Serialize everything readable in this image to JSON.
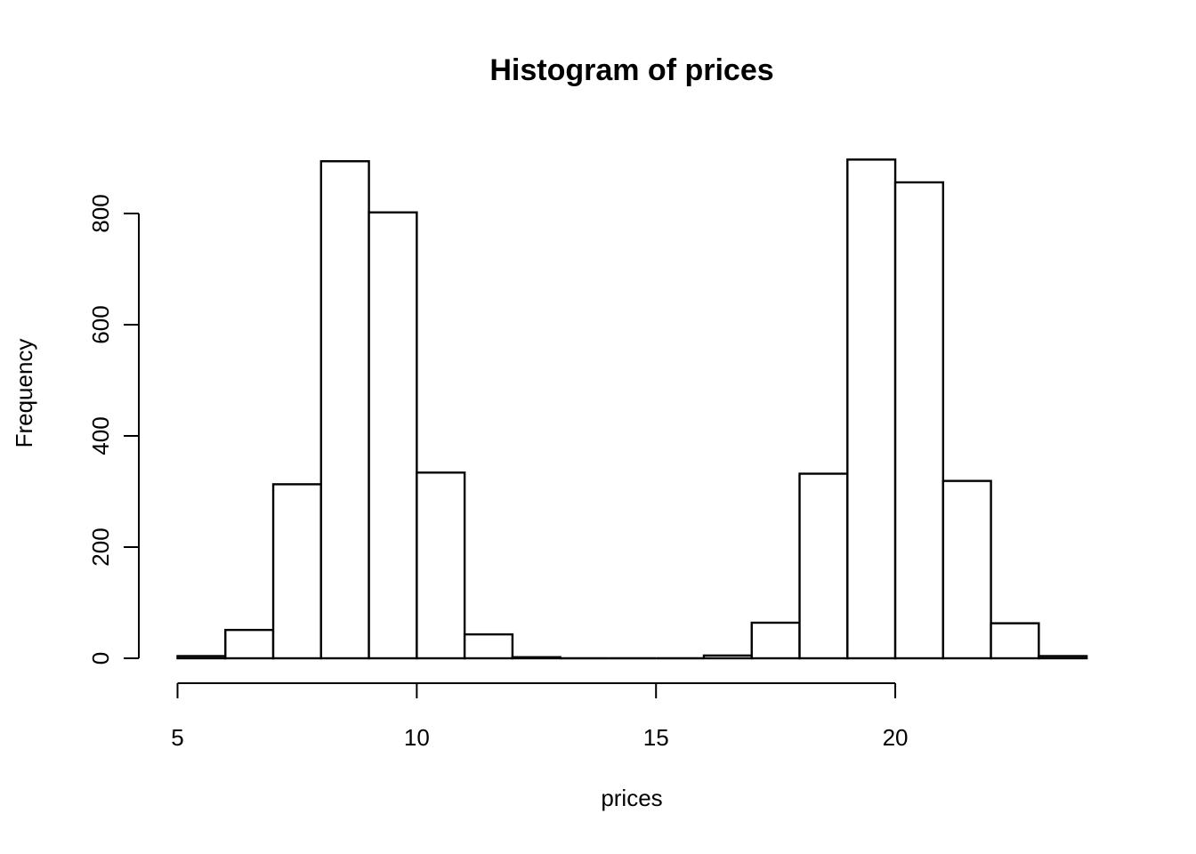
{
  "page": {
    "background": "#ffffff"
  },
  "chart_data": {
    "type": "bar",
    "chart_kind": "histogram",
    "title": "Histogram of prices",
    "xlabel": "prices",
    "ylabel": "Frequency",
    "bin_start": 5,
    "bin_width": 1,
    "bin_edges": [
      5,
      6,
      7,
      8,
      9,
      10,
      11,
      12,
      13,
      14,
      15,
      16,
      17,
      18,
      19,
      20,
      21,
      22,
      23,
      24
    ],
    "counts": [
      4,
      51,
      313,
      894,
      802,
      334,
      43,
      2,
      0,
      0,
      0,
      5,
      64,
      332,
      897,
      856,
      319,
      63,
      4
    ],
    "x_ticks": [
      5,
      10,
      15,
      20
    ],
    "y_ticks": [
      0,
      200,
      400,
      600,
      800
    ],
    "xlim": [
      5,
      24
    ],
    "ylim": [
      0,
      900
    ],
    "grid": false,
    "bar_fill": "#ffffff",
    "bar_stroke": "#000000",
    "axis_color": "#000000",
    "text_color": "#000000"
  }
}
